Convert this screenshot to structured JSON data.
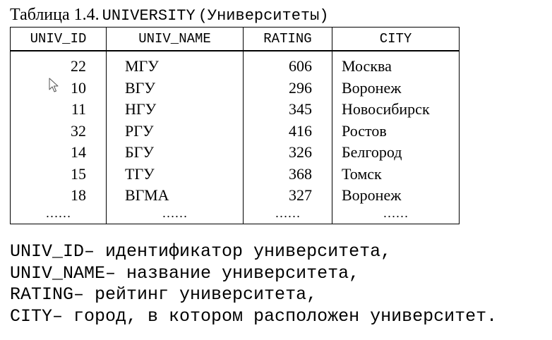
{
  "caption": {
    "table_label": "Таблица 1.4.",
    "table_name": "UNIVERSITY",
    "table_translation": "(Университеты)"
  },
  "table": {
    "headers": [
      "UNIV_ID",
      "UNIV_NAME",
      "RATING",
      "CITY"
    ],
    "rows": [
      {
        "id": "22",
        "name": "МГУ",
        "rating": "606",
        "city": "Москва"
      },
      {
        "id": "10",
        "name": "ВГУ",
        "rating": "296",
        "city": "Воронеж"
      },
      {
        "id": "11",
        "name": "НГУ",
        "rating": "345",
        "city": "Новосибирск"
      },
      {
        "id": "32",
        "name": "РГУ",
        "rating": "416",
        "city": "Ростов"
      },
      {
        "id": "14",
        "name": "БГУ",
        "rating": "326",
        "city": "Белгород"
      },
      {
        "id": "15",
        "name": "ТГУ",
        "rating": "368",
        "city": "Томск"
      },
      {
        "id": "18",
        "name": "ВГМА",
        "rating": "327",
        "city": "Воронеж"
      }
    ],
    "ellipsis": [
      "……",
      "……",
      "……",
      "……"
    ]
  },
  "legend": [
    "UNIV_ID– идентификатор университета,",
    "UNIV_NAME– название университета,",
    "RATING– рейтинг университета,",
    "CITY– город, в котором расположен университет."
  ],
  "icons": {
    "cursor": "mouse-pointer-arrow"
  }
}
